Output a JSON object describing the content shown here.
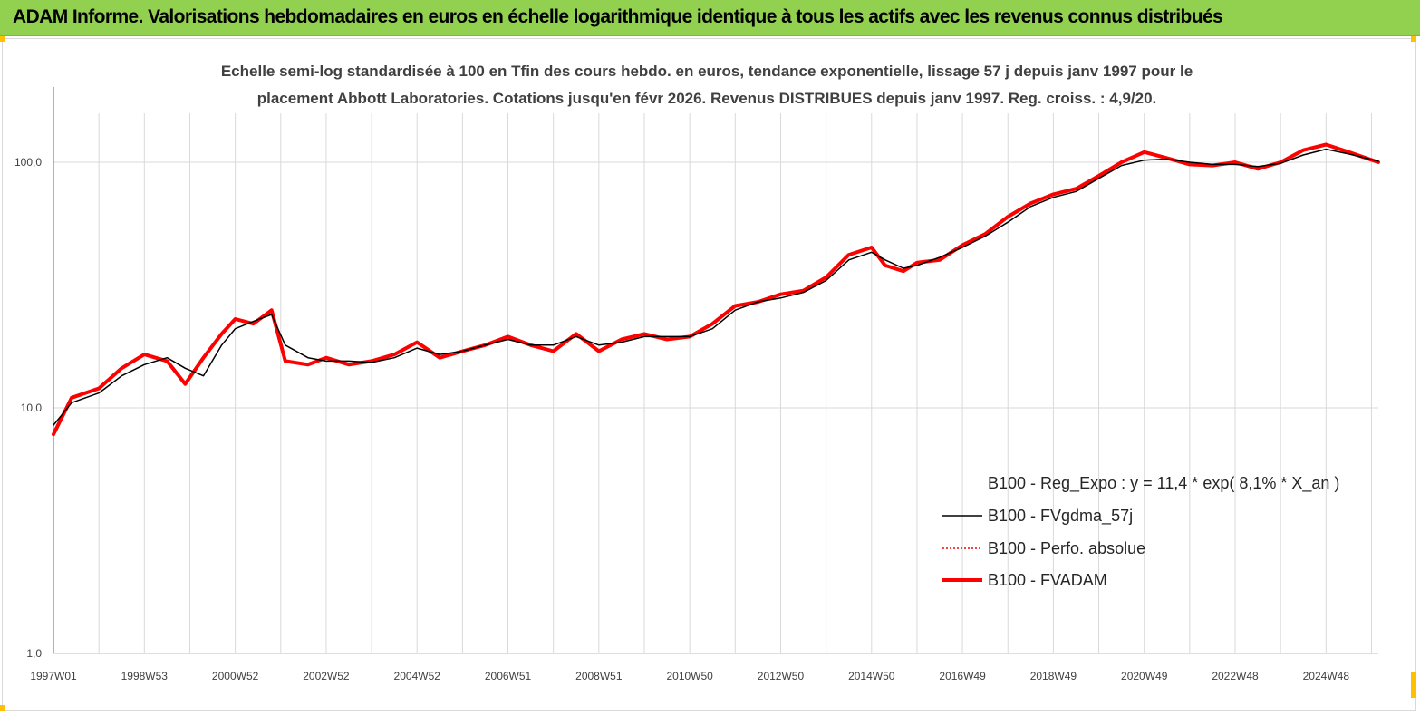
{
  "header": {
    "title": "ADAM Informe. Valorisations hebdomadaires en euros en échelle logarithmique identique à tous les actifs avec les revenus connus distribués"
  },
  "colors": {
    "banner": "#92d050",
    "corner_accent": "#ffc000",
    "regression": "#1fb14b",
    "fvadam": "#ff0000",
    "fvgdma": "#000000",
    "perfo": "#ff0000",
    "gridline": "#d9d9d9",
    "axis": "#2e75b6"
  },
  "chart_data": {
    "type": "line",
    "title_lines": [
      "Echelle semi-log standardisée à 100 en Tfin des cours hebdo. en euros, tendance exponentielle, lissage 57 j depuis janv 1997 pour le",
      "placement Abbott Laboratories. Cotations jusqu'en févr 2026.  Revenus DISTRIBUES depuis janv 1997. Reg. croiss. : 4,9/20."
    ],
    "y_scale": "log",
    "ylim": [
      1,
      200
    ],
    "y_ticks": [
      "1,0",
      "10,0",
      "100,0"
    ],
    "y_tick_values": [
      1,
      10,
      100
    ],
    "xlim": [
      1997.0,
      2026.15
    ],
    "x_ticks": [
      "1997W01",
      "1998W53",
      "2000W52",
      "2002W52",
      "2004W52",
      "2006W51",
      "2008W51",
      "2010W50",
      "2012W50",
      "2014W50",
      "2016W49",
      "2018W49",
      "2020W49",
      "2022W48",
      "2024W48"
    ],
    "x_tick_values": [
      1997.0,
      1999.0,
      2001.0,
      2003.0,
      2005.0,
      2007.0,
      2009.0,
      2011.0,
      2013.0,
      2015.0,
      2017.0,
      2019.0,
      2021.0,
      2023.0,
      2025.0
    ],
    "grid": "vertical and horizontal",
    "legend_position": "right",
    "series": [
      {
        "name": "B100 - Reg_Expo : y = 11,4 * exp( 8,1% *  X_an )",
        "key": "reg",
        "style": "thick-solid",
        "x": [
          1997.0,
          2026.15
        ],
        "y": [
          9.5,
          100
        ]
      },
      {
        "name": "B100 - FVgdma_57j",
        "key": "fvgdma",
        "style": "thin-solid",
        "x": [
          1997.0,
          1997.4,
          1998.0,
          1998.5,
          1999.0,
          1999.5,
          1999.9,
          2000.3,
          2000.7,
          2001.0,
          2001.4,
          2001.8,
          2002.1,
          2002.6,
          2003.0,
          2003.5,
          2004.0,
          2004.5,
          2005.0,
          2005.5,
          2006.0,
          2006.5,
          2007.0,
          2007.5,
          2008.0,
          2008.5,
          2009.0,
          2009.5,
          2010.0,
          2010.5,
          2011.0,
          2011.5,
          2012.0,
          2012.5,
          2013.0,
          2013.5,
          2014.0,
          2014.5,
          2015.0,
          2015.3,
          2015.7,
          2016.0,
          2016.5,
          2017.0,
          2017.5,
          2018.0,
          2018.5,
          2019.0,
          2019.5,
          2020.0,
          2020.5,
          2021.0,
          2021.5,
          2022.0,
          2022.5,
          2023.0,
          2023.5,
          2024.0,
          2024.5,
          2025.0,
          2025.5,
          2026.15
        ],
        "y": [
          8.5,
          10.5,
          11.5,
          13.5,
          15.0,
          16.0,
          14.5,
          13.5,
          18.0,
          21.0,
          22.5,
          24.0,
          18.0,
          16.0,
          15.5,
          15.5,
          15.3,
          16.0,
          17.5,
          16.5,
          17.0,
          18.0,
          19.0,
          18.0,
          18.0,
          19.5,
          18.0,
          18.5,
          19.5,
          19.5,
          19.5,
          21.0,
          25.0,
          27.0,
          28.0,
          29.5,
          33.0,
          40.0,
          43.0,
          40.0,
          37.0,
          38.0,
          41.0,
          45.0,
          50.0,
          57.0,
          66.0,
          72.0,
          76.0,
          86.0,
          97.0,
          102.0,
          103.0,
          100.0,
          98.0,
          98.0,
          96.0,
          99.0,
          107.0,
          113.0,
          108.0,
          101.0
        ]
      },
      {
        "name": "B100 - Perfo. absolue",
        "key": "perfo",
        "style": "dotted"
      },
      {
        "name": "B100 - FVADAM",
        "key": "fvadam",
        "style": "thick-solid",
        "x": [
          1997.0,
          1997.4,
          1998.0,
          1998.5,
          1999.0,
          1999.5,
          1999.9,
          2000.3,
          2000.7,
          2001.0,
          2001.4,
          2001.8,
          2002.1,
          2002.6,
          2003.0,
          2003.5,
          2004.0,
          2004.5,
          2005.0,
          2005.5,
          2006.0,
          2006.5,
          2007.0,
          2007.5,
          2008.0,
          2008.5,
          2009.0,
          2009.5,
          2010.0,
          2010.5,
          2011.0,
          2011.5,
          2012.0,
          2012.5,
          2013.0,
          2013.5,
          2014.0,
          2014.5,
          2015.0,
          2015.3,
          2015.7,
          2016.0,
          2016.5,
          2017.0,
          2017.5,
          2018.0,
          2018.5,
          2019.0,
          2019.5,
          2020.0,
          2020.5,
          2021.0,
          2021.5,
          2022.0,
          2022.5,
          2023.0,
          2023.5,
          2024.0,
          2024.5,
          2025.0,
          2025.5,
          2026.15
        ],
        "y": [
          7.8,
          11.0,
          12.0,
          14.5,
          16.5,
          15.5,
          12.5,
          16.0,
          20.0,
          23.0,
          22.0,
          25.0,
          15.5,
          15.0,
          16.0,
          15.0,
          15.5,
          16.5,
          18.5,
          16.0,
          17.0,
          18.0,
          19.5,
          18.0,
          17.0,
          20.0,
          17.0,
          19.0,
          20.0,
          19.0,
          19.5,
          22.0,
          26.0,
          27.0,
          29.0,
          30.0,
          34.0,
          42.0,
          45.0,
          38.0,
          36.0,
          39.0,
          40.0,
          46.0,
          51.0,
          60.0,
          68.0,
          74.0,
          78.0,
          88.0,
          100.0,
          110.0,
          104.0,
          98.0,
          97.0,
          100.0,
          94.0,
          100.0,
          112.0,
          118.0,
          110.0,
          100.0
        ]
      }
    ]
  }
}
